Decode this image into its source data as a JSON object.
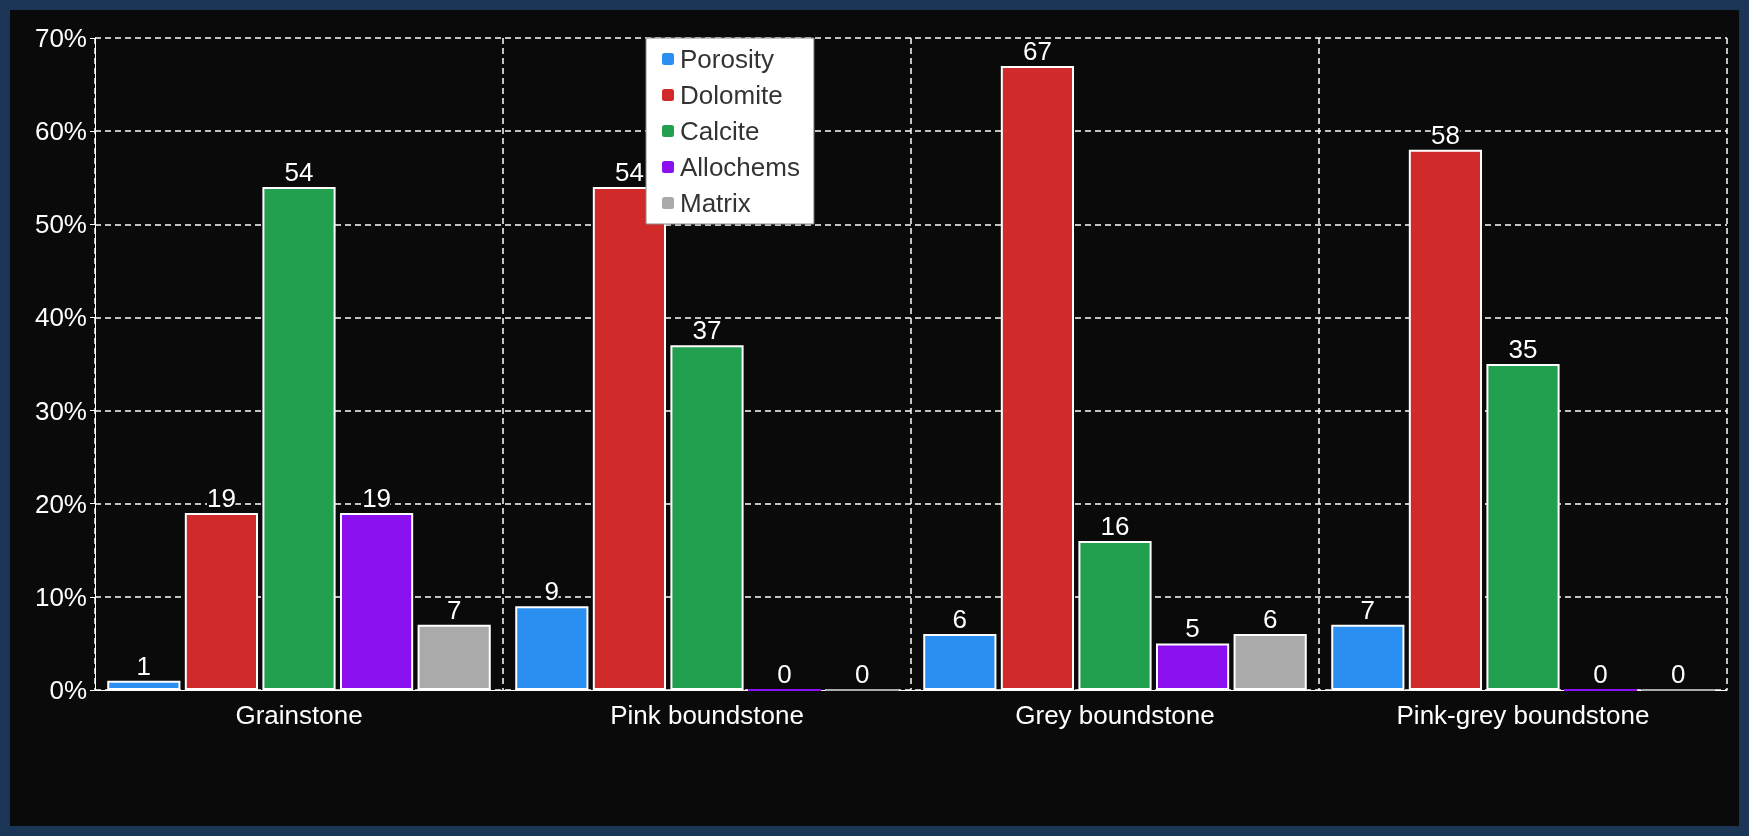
{
  "chart_data": {
    "type": "bar",
    "categories": [
      "Grainstone",
      "Pink boundstone",
      "Grey boundstone",
      "Pink-grey boundstone"
    ],
    "series": [
      {
        "name": "Porosity",
        "color": "#2a8ff0",
        "values": [
          1,
          9,
          6,
          7
        ]
      },
      {
        "name": "Dolomite",
        "color": "#d02a2a",
        "values": [
          19,
          54,
          67,
          58
        ]
      },
      {
        "name": "Calcite",
        "color": "#22a050",
        "values": [
          54,
          37,
          16,
          35
        ]
      },
      {
        "name": "Allochems",
        "color": "#8a10f0",
        "values": [
          19,
          0,
          5,
          0
        ]
      },
      {
        "name": "Matrix",
        "color": "#aaaaaa",
        "values": [
          7,
          0,
          6,
          0
        ]
      }
    ],
    "ylim": [
      0,
      70
    ],
    "yticks": [
      {
        "value": 0,
        "label": "0%"
      },
      {
        "value": 10,
        "label": "10%"
      },
      {
        "value": 20,
        "label": "20%"
      },
      {
        "value": 30,
        "label": "30%"
      },
      {
        "value": 40,
        "label": "40%"
      },
      {
        "value": 50,
        "label": "50%"
      },
      {
        "value": 60,
        "label": "60%"
      },
      {
        "value": 70,
        "label": "70%"
      }
    ],
    "grid": true,
    "legend": "top",
    "data_labels": true
  }
}
